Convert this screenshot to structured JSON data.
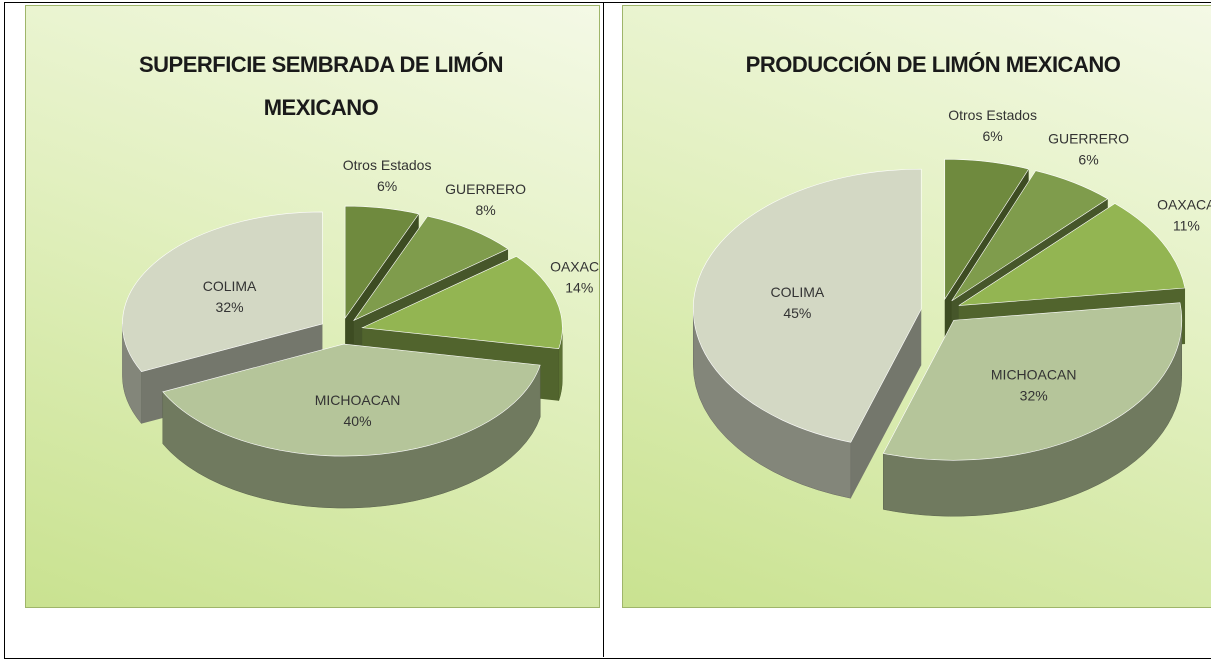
{
  "chart_data": [
    {
      "type": "pie3d",
      "title": "SUPERFICIE SEMBRADA  DE LIMÓN MEXICANO",
      "categories": [
        "Otros Estados",
        "GUERRERO",
        "OAXACA",
        "MICHOACAN",
        "COLIMA"
      ],
      "values": [
        6,
        8,
        14,
        40,
        32
      ],
      "value_labels": [
        "6%",
        "8%",
        "14%",
        "40%",
        "32%"
      ],
      "colors": [
        "#6f8a3e",
        "#7f9c4c",
        "#93b552",
        "#b5c59a",
        "#d3d8c4"
      ]
    },
    {
      "type": "pie3d",
      "title": "PRODUCCIÓN DE LIMÓN MEXICANO",
      "categories": [
        "Otros Estados",
        "GUERRERO",
        "OAXACA",
        "MICHOACAN",
        "COLIMA"
      ],
      "values": [
        6,
        6,
        11,
        32,
        45
      ],
      "value_labels": [
        "6%",
        "6%",
        "11%",
        "32%",
        "45%"
      ],
      "colors": [
        "#6f8a3e",
        "#7f9c4c",
        "#93b552",
        "#b5c59a",
        "#d3d8c4"
      ]
    }
  ]
}
